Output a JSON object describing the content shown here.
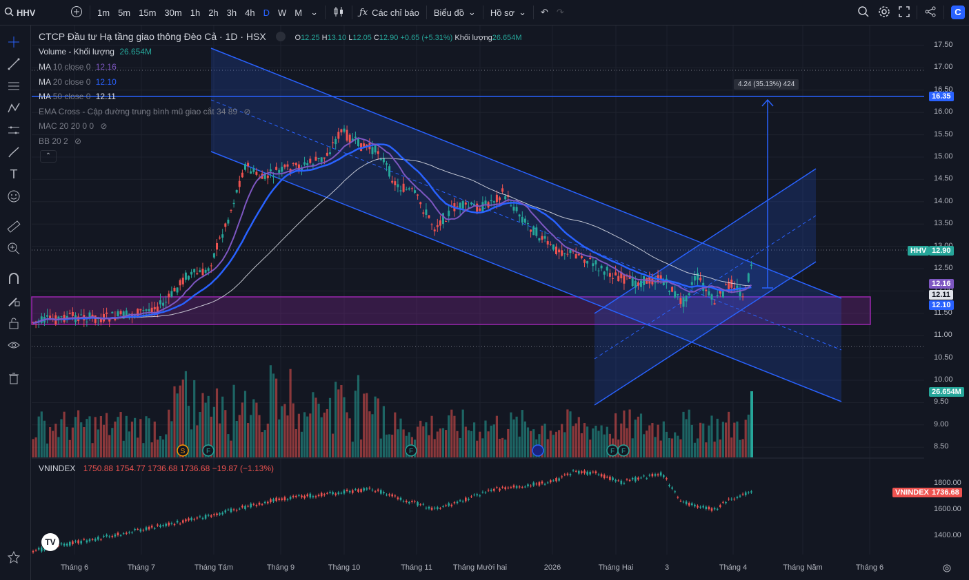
{
  "toolbar": {
    "symbol": "HHV",
    "timeframes": [
      "1m",
      "5m",
      "15m",
      "30m",
      "1h",
      "2h",
      "3h",
      "4h",
      "D",
      "W",
      "M"
    ],
    "active_timeframe": "D",
    "indicators_label": "Các chỉ báo",
    "chart_type_label": "Biểu đồ",
    "profile_label": "Hồ sơ"
  },
  "legend": {
    "title": "CTCP Đầu tư Hạ tầng giao thông Đèo Cả · 1D · HSX",
    "ohlc": {
      "o_label": "O",
      "o": "12.25",
      "h_label": "H",
      "h": "13.10",
      "l_label": "L",
      "l": "12.05",
      "c_label": "C",
      "c": "12.90",
      "chg": "+0.65 (+5.31%)",
      "vol_label": "Khối lượng",
      "vol": "26.654M"
    },
    "volume": {
      "label": "Volume - Khối lượng",
      "value": "26.654M"
    },
    "ma10": {
      "label": "MA",
      "params": "10 close 0",
      "value": "12.16"
    },
    "ma20": {
      "label": "MA",
      "params": "20 close 0",
      "value": "12.10"
    },
    "ma50": {
      "label": "MA",
      "params": "50 close 0",
      "value": "12.11"
    },
    "ema_cross": {
      "label": "EMA Cross - Cập đường trung bình mũ giao cắt 34 89"
    },
    "mac": {
      "label": "MAC 20 20 0 0"
    },
    "bb": {
      "label": "BB 20 2"
    }
  },
  "measure": {
    "label": "4.24 (35.13%) 424"
  },
  "price_levels": [
    "17.50",
    "17.00",
    "16.50",
    "16.00",
    "15.50",
    "15.00",
    "14.50",
    "14.00",
    "13.50",
    "13.00",
    "12.50",
    "12.00",
    "11.50",
    "11.00",
    "10.50",
    "10.00",
    "9.50",
    "9.00",
    "8.50"
  ],
  "tags": {
    "line": "16.35",
    "symbol": "HHV",
    "last": "12.90",
    "ma10": "12.16",
    "ma50": "12.11",
    "ma20": "12.10",
    "volume": "26.654M"
  },
  "index_pane": {
    "name": "VNINDEX",
    "o": "1750.88",
    "h": "1754.77",
    "l": "1736.68",
    "c": "1736.68",
    "chg": "−19.87 (−1.13%)",
    "levels": [
      "1800.00",
      "1600.00",
      "1400.00"
    ],
    "tag_name": "VNINDEX",
    "tag_value": "1736.68"
  },
  "time_labels": [
    "Tháng 6",
    "Tháng 7",
    "Tháng Tám",
    "Tháng 9",
    "Tháng 10",
    "Tháng 11",
    "Tháng Mười hai",
    "2026",
    "Tháng Hai",
    "3",
    "Tháng 4",
    "Tháng Năm",
    "Tháng 6"
  ],
  "event_markers": [
    "S",
    "F",
    "F",
    "F",
    "F",
    "F"
  ],
  "colors": {
    "up": "#26a69a",
    "down": "#ef5350",
    "ma10": "#7e57c2",
    "ma20": "#2962ff",
    "ma50": "#e0e3eb",
    "accent": "#2962ff",
    "zone": "#9c27b0"
  }
}
